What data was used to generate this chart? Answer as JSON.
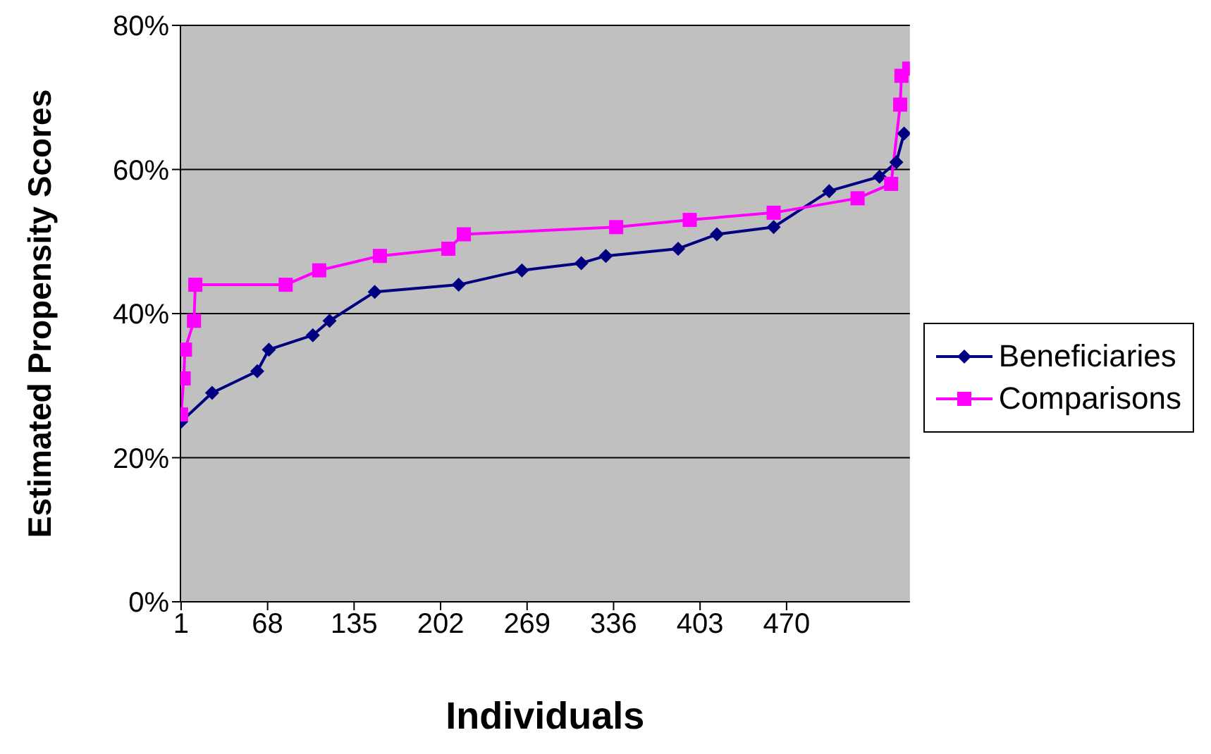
{
  "chart_data": {
    "type": "line",
    "xlabel": "Individuals",
    "ylabel": "Estimated Propensity Scores",
    "xlim": [
      0.5,
      565.5
    ],
    "xticks": [
      1,
      68,
      135,
      202,
      269,
      336,
      403,
      470
    ],
    "ylim": [
      0,
      80
    ],
    "yticks": [
      {
        "value": 0,
        "label": "0%"
      },
      {
        "value": 20,
        "label": "20%"
      },
      {
        "value": 40,
        "label": "40%"
      },
      {
        "value": 60,
        "label": "60%"
      },
      {
        "value": 80,
        "label": "80%"
      }
    ],
    "grid": "y",
    "legend": "right",
    "series": [
      {
        "name": "Beneficiaries",
        "color": "#000080",
        "marker": "diamond",
        "x": [
          1,
          25,
          60,
          69,
          103,
          116,
          151,
          216,
          265,
          311,
          330,
          386,
          416,
          460,
          503,
          542,
          555,
          561
        ],
        "values": [
          25,
          29,
          32,
          35,
          37,
          39,
          43,
          44,
          46,
          47,
          48,
          49,
          51,
          52,
          57,
          59,
          61,
          65
        ]
      },
      {
        "name": "Comparisons",
        "color": "#ff00ff",
        "marker": "square",
        "x": [
          1,
          3,
          4,
          11,
          12,
          82,
          108,
          155,
          208,
          220,
          338,
          395,
          460,
          525,
          551,
          558,
          559,
          565
        ],
        "values": [
          26,
          31,
          35,
          39,
          44,
          44,
          46,
          48,
          49,
          51,
          52,
          53,
          54,
          56,
          58,
          69,
          73,
          74
        ]
      }
    ]
  }
}
